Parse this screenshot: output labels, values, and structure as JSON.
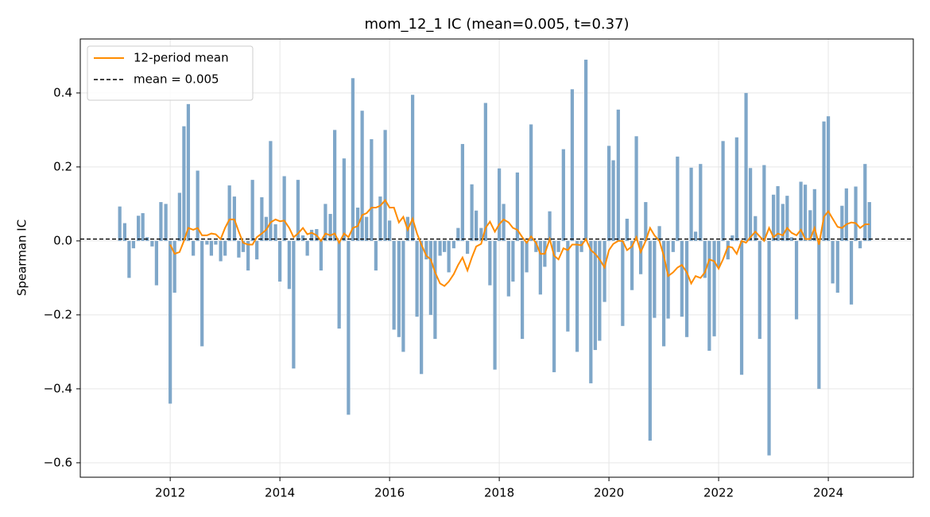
{
  "chart_data": {
    "type": "bar",
    "title": "mom_12_1 IC (mean=0.005, t=0.37)",
    "ylabel": "Spearman IC",
    "grid": true,
    "legend": "upper left",
    "xlim": [
      2010.36,
      2025.55
    ],
    "xticks": [
      2012,
      2014,
      2016,
      2018,
      2020,
      2022,
      2024
    ],
    "ylim": [
      -0.639,
      0.546
    ],
    "yticks": [
      {
        "value": -0.6,
        "label": "−0.6"
      },
      {
        "value": -0.4,
        "label": "−0.4"
      },
      {
        "value": -0.2,
        "label": "−0.2"
      },
      {
        "value": 0,
        "label": "0.0"
      },
      0.2,
      0.4
    ],
    "x": [
      2011.08,
      2011.17,
      2011.25,
      2011.33,
      2011.42,
      2011.5,
      2011.58,
      2011.67,
      2011.75,
      2011.83,
      2011.92,
      2012,
      2012.08,
      2012.17,
      2012.25,
      2012.33,
      2012.42,
      2012.5,
      2012.58,
      2012.67,
      2012.75,
      2012.83,
      2012.92,
      2013,
      2013.08,
      2013.17,
      2013.25,
      2013.33,
      2013.42,
      2013.5,
      2013.58,
      2013.67,
      2013.75,
      2013.83,
      2013.92,
      2014,
      2014.08,
      2014.17,
      2014.25,
      2014.33,
      2014.42,
      2014.5,
      2014.58,
      2014.67,
      2014.75,
      2014.83,
      2014.92,
      2015,
      2015.08,
      2015.17,
      2015.25,
      2015.33,
      2015.42,
      2015.5,
      2015.58,
      2015.67,
      2015.75,
      2015.83,
      2015.92,
      2016,
      2016.08,
      2016.17,
      2016.25,
      2016.33,
      2016.42,
      2016.5,
      2016.58,
      2016.67,
      2016.75,
      2016.83,
      2016.92,
      2017,
      2017.08,
      2017.17,
      2017.25,
      2017.33,
      2017.42,
      2017.5,
      2017.58,
      2017.67,
      2017.75,
      2017.83,
      2017.92,
      2018,
      2018.08,
      2018.17,
      2018.25,
      2018.33,
      2018.42,
      2018.5,
      2018.58,
      2018.67,
      2018.75,
      2018.83,
      2018.92,
      2019,
      2019.08,
      2019.17,
      2019.25,
      2019.33,
      2019.42,
      2019.5,
      2019.58,
      2019.67,
      2019.75,
      2019.83,
      2019.92,
      2020,
      2020.08,
      2020.17,
      2020.25,
      2020.33,
      2020.42,
      2020.5,
      2020.58,
      2020.67,
      2020.75,
      2020.83,
      2020.92,
      2021,
      2021.08,
      2021.17,
      2021.25,
      2021.33,
      2021.42,
      2021.5,
      2021.58,
      2021.67,
      2021.75,
      2021.83,
      2021.92,
      2022,
      2022.08,
      2022.17,
      2022.25,
      2022.33,
      2022.42,
      2022.5,
      2022.58,
      2022.67,
      2022.75,
      2022.83,
      2022.92,
      2023,
      2023.08,
      2023.17,
      2023.25,
      2023.33,
      2023.42,
      2023.5,
      2023.58,
      2023.67,
      2023.75,
      2023.83,
      2023.92,
      2024,
      2024.08,
      2024.17,
      2024.25,
      2024.33,
      2024.42,
      2024.5,
      2024.58,
      2024.67,
      2024.75
    ],
    "series": [
      {
        "type": "bar",
        "color": "#7fa7c9",
        "values": [
          0.093,
          0.048,
          -0.1,
          -0.02,
          0.068,
          0.075,
          0.01,
          -0.015,
          -0.12,
          0.105,
          0.1,
          -0.44,
          -0.14,
          0.13,
          0.31,
          0.37,
          -0.04,
          0.19,
          -0.285,
          -0.01,
          -0.04,
          -0.01,
          -0.055,
          -0.04,
          0.15,
          0.12,
          -0.045,
          -0.03,
          -0.08,
          0.165,
          -0.05,
          0.118,
          0.065,
          0.27,
          0.045,
          -0.11,
          0.175,
          -0.13,
          -0.345,
          0.165,
          0.015,
          -0.04,
          0.03,
          0.032,
          -0.08,
          0.1,
          0.073,
          0.3,
          -0.237,
          0.223,
          -0.47,
          0.44,
          0.09,
          0.352,
          0.065,
          0.275,
          -0.08,
          0.12,
          0.3,
          0.055,
          -0.24,
          -0.26,
          -0.3,
          0.065,
          0.395,
          -0.205,
          -0.36,
          -0.05,
          -0.2,
          -0.265,
          -0.04,
          -0.03,
          -0.085,
          -0.02,
          0.035,
          0.262,
          -0.035,
          0.153,
          0.082,
          0.035,
          0.373,
          -0.12,
          -0.348,
          0.196,
          0.1,
          -0.15,
          -0.11,
          0.185,
          -0.265,
          -0.085,
          0.315,
          -0.03,
          -0.145,
          -0.07,
          0.08,
          -0.355,
          -0.03,
          0.248,
          -0.245,
          0.41,
          -0.3,
          -0.03,
          0.49,
          -0.385,
          -0.295,
          -0.27,
          -0.165,
          0.257,
          0.218,
          0.355,
          -0.23,
          0.06,
          -0.133,
          0.283,
          -0.09,
          0.105,
          -0.54,
          -0.208,
          0.04,
          -0.285,
          -0.21,
          -0.03,
          0.228,
          -0.205,
          -0.26,
          0.198,
          0.025,
          0.208,
          -0.1,
          -0.297,
          -0.258,
          -0.07,
          0.27,
          -0.05,
          0.015,
          0.28,
          -0.362,
          0.4,
          0.197,
          0.067,
          -0.265,
          0.205,
          -0.58,
          0.125,
          0.148,
          0.1,
          0.122,
          0.01,
          -0.212,
          0.16,
          0.152,
          0.083,
          0.14,
          -0.4,
          0.323,
          0.337,
          -0.115,
          -0.14,
          0.095,
          0.142,
          -0.172,
          0.147,
          -0.02,
          0.208,
          0.105
        ]
      },
      {
        "type": "line",
        "name": "12-period mean",
        "color": "#ff8c00",
        "values": [
          null,
          null,
          null,
          null,
          null,
          null,
          null,
          null,
          null,
          null,
          null,
          -0.01,
          -0.035,
          -0.03,
          0.0,
          0.035,
          0.03,
          0.035,
          0.015,
          0.015,
          0.02,
          0.018,
          0.005,
          0.035,
          0.058,
          0.058,
          0.025,
          -0.005,
          -0.01,
          -0.01,
          0.01,
          0.02,
          0.03,
          0.05,
          0.058,
          0.053,
          0.055,
          0.035,
          0.01,
          0.02,
          0.035,
          0.018,
          0.022,
          0.015,
          0.0,
          0.02,
          0.015,
          0.02,
          -0.005,
          0.02,
          0.01,
          0.035,
          0.04,
          0.07,
          0.075,
          0.09,
          0.09,
          0.095,
          0.11,
          0.09,
          0.09,
          0.05,
          0.065,
          0.03,
          0.06,
          0.02,
          -0.01,
          -0.04,
          -0.05,
          -0.085,
          -0.115,
          -0.122,
          -0.11,
          -0.09,
          -0.065,
          -0.045,
          -0.08,
          -0.045,
          -0.015,
          -0.008,
          0.035,
          0.052,
          0.025,
          0.045,
          0.058,
          0.05,
          0.035,
          0.03,
          0.01,
          -0.005,
          0.012,
          -0.005,
          -0.035,
          -0.035,
          0.005,
          -0.04,
          -0.05,
          -0.02,
          -0.025,
          -0.01,
          -0.01,
          -0.012,
          0.005,
          -0.025,
          -0.035,
          -0.05,
          -0.072,
          -0.025,
          -0.008,
          0.0,
          0.0,
          -0.025,
          -0.015,
          0.01,
          -0.03,
          0.0,
          0.035,
          0.015,
          0.0,
          -0.04,
          -0.095,
          -0.085,
          -0.072,
          -0.065,
          -0.085,
          -0.115,
          -0.095,
          -0.1,
          -0.085,
          -0.05,
          -0.055,
          -0.075,
          -0.05,
          -0.015,
          -0.018,
          -0.035,
          0.0,
          -0.005,
          0.01,
          0.025,
          0.012,
          0.0,
          0.035,
          0.01,
          0.02,
          0.015,
          0.035,
          0.022,
          0.015,
          0.03,
          0.005,
          0.005,
          0.035,
          -0.01,
          0.065,
          0.08,
          0.06,
          0.038,
          0.035,
          0.045,
          0.05,
          0.048,
          0.035,
          0.045,
          0.045
        ]
      }
    ],
    "hlines": [
      {
        "name": "mean = 0.005",
        "value": 0.005,
        "color": "#000000",
        "style": "dashed"
      }
    ]
  }
}
